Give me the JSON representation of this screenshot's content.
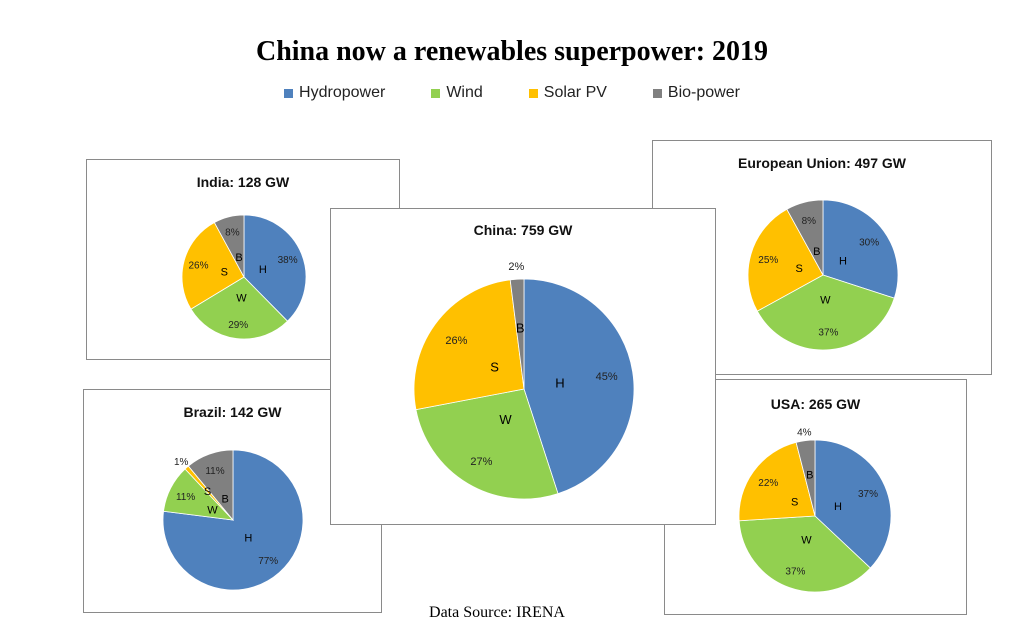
{
  "title": "China now a renewables superpower: 2019",
  "source": "Data Source: IRENA",
  "colors": {
    "Hydropower": "#4f81bd",
    "Wind": "#92d050",
    "Solar PV": "#ffc000",
    "Bio-power": "#808080"
  },
  "legend": [
    "Hydropower",
    "Wind",
    "Solar PV",
    "Bio-power"
  ],
  "chart_data": [
    {
      "type": "pie",
      "title": "India: 128 GW",
      "categories": [
        "Hydropower",
        "Wind",
        "Solar PV",
        "Bio-power"
      ],
      "letters": [
        "H",
        "W",
        "S",
        "B"
      ],
      "values": [
        38,
        29,
        26,
        8
      ],
      "labels": [
        "38%",
        "29%",
        "26%",
        "8%"
      ]
    },
    {
      "type": "pie",
      "title": "Brazil: 142 GW",
      "categories": [
        "Hydropower",
        "Wind",
        "Solar PV",
        "Bio-power"
      ],
      "letters": [
        "H",
        "W",
        "S",
        "B"
      ],
      "values": [
        77,
        11,
        1,
        11
      ],
      "labels": [
        "77%",
        "11%",
        "1%",
        "11%"
      ]
    },
    {
      "type": "pie",
      "title": "European Union: 497 GW",
      "categories": [
        "Hydropower",
        "Wind",
        "Solar PV",
        "Bio-power"
      ],
      "letters": [
        "H",
        "W",
        "S",
        "B"
      ],
      "values": [
        30,
        37,
        25,
        8
      ],
      "labels": [
        "30%",
        "37%",
        "25%",
        "8%"
      ]
    },
    {
      "type": "pie",
      "title": "USA: 265 GW",
      "categories": [
        "Hydropower",
        "Wind",
        "Solar PV",
        "Bio-power"
      ],
      "letters": [
        "H",
        "W",
        "S",
        "B"
      ],
      "values": [
        37,
        37,
        22,
        4
      ],
      "labels": [
        "37%",
        "37%",
        "22%",
        "4%"
      ]
    },
    {
      "type": "pie",
      "title": "China: 759 GW",
      "categories": [
        "Hydropower",
        "Wind",
        "Solar PV",
        "Bio-power"
      ],
      "letters": [
        "H",
        "W",
        "S",
        "B"
      ],
      "values": [
        45,
        27,
        26,
        2
      ],
      "labels": [
        "45%",
        "27%",
        "26%",
        "2%"
      ]
    }
  ]
}
